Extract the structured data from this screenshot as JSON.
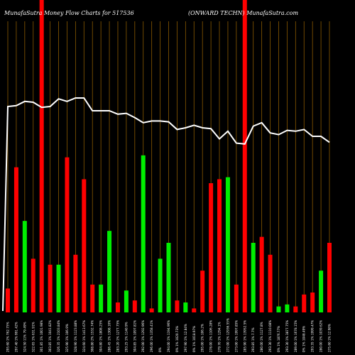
{
  "header": {
    "left_title": "MunafaSutra  Money Flow  Charts for 517536",
    "right_title": "(ONWARD TECHN) MunafaSutra.com"
  },
  "colors": {
    "background": "#000000",
    "up_bar": "#00ee00",
    "down_bar": "#ff0000",
    "gridline": "#8b5a00",
    "price_line": "#ffffff"
  },
  "chart_data": {
    "type": "bar",
    "title": "",
    "ylim": [
      0,
      100
    ],
    "gridlines": true,
    "categories": [
      "295.60 1% 762.75%",
      "297.40 1% 991.42%",
      "324.50 11% 79.49%",
      "322.65 1% 631.91%",
      "301.85 1% 1001.98%",
      "303.85 1% 1041.82%",
      "326.35 1% 2103.84%",
      "325.90 1% 106.9%",
      "328.90 1% 1123.88%",
      "324.60 1% 1413.67%",
      "308.80 2% 1532.74%",
      "304.80 1% 1808.25%",
      "286.45 1% 1308.16%",
      "283.20 1% 1277.75%",
      "293.25 1% 1140.9%",
      "304.85 1% 1097.81%",
      "292.00 1% 1292.96%",
      "296.00 1% 1358.41%",
      "0% ",
      "294.00 1% 1194.96%",
      "0% 1% 1020.73%",
      "297.90 1% 12.84%",
      "0% 1% 1018.97%",
      "295.00 1% 106.2%",
      "278.00 1% 1106.28%",
      "279.70 1% 1294.1%",
      "272.00 1% 12936.55%",
      "273.00 1% 1997.85%",
      "285.90 1% 13952.5%",
      "293.85 1% 7.7%",
      "280.00 1% 1127.8%",
      "293.30 1% 1110.08%",
      "0% 1% 1876.77%",
      "293.30 1% 3877.75%",
      "289.00 1% 1678.15%",
      "0% 1% 1048.49%",
      "293.35 1% 1999.47%",
      "280.00 1% 1039.62%",
      "275.60 1% 12.98%"
    ],
    "series": [
      {
        "colors": [
          "red",
          "red",
          "green",
          "red",
          "red",
          "red",
          "green",
          "red",
          "red",
          "red",
          "red",
          "green",
          "green",
          "red",
          "green",
          "red",
          "green",
          "red",
          "green",
          "green",
          "red",
          "green",
          "red",
          "red",
          "red",
          "red",
          "green",
          "red",
          "red",
          "green",
          "red",
          "red",
          "green",
          "green",
          "red",
          "red",
          "red",
          "green",
          "red"
        ],
        "values": [
          12,
          73,
          46,
          27,
          100,
          24,
          24,
          78,
          29,
          67,
          14,
          14,
          41,
          5,
          11,
          6,
          79,
          2,
          27,
          35,
          6,
          5,
          2,
          21,
          65,
          67,
          68,
          14,
          100,
          35,
          38,
          29,
          3,
          4,
          3,
          9,
          10,
          21,
          35
        ],
        "overflow": [
          false,
          false,
          false,
          false,
          true,
          false,
          false,
          false,
          false,
          false,
          false,
          false,
          false,
          false,
          false,
          false,
          false,
          false,
          false,
          false,
          false,
          false,
          false,
          false,
          false,
          false,
          false,
          false,
          true,
          false,
          false,
          false,
          false,
          false,
          false,
          false,
          false,
          false,
          false
        ]
      },
      {
        "type": "line",
        "values": [
          100,
          100.5,
          103,
          102.5,
          99.5,
          100,
          104.5,
          103,
          105,
          105,
          97.5,
          97.5,
          97.5,
          95.5,
          96,
          93.5,
          90.5,
          91.5,
          91.5,
          91,
          86.5,
          87.5,
          89,
          87.5,
          87,
          81,
          85.5,
          78.5,
          78,
          88.5,
          90.5,
          84.5,
          83.5,
          86,
          85.5,
          86.5,
          82.5,
          82.5,
          79
        ]
      }
    ]
  }
}
